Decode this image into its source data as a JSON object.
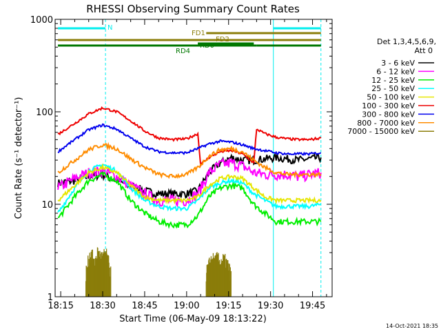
{
  "chart_data": {
    "type": "line",
    "title": "RHESSI Observing Summary Count Rates",
    "xlabel": "Start Time (06-May-09 18:13:22)",
    "ylabel": "Count Rate (s⁻¹ detector⁻¹)",
    "ylog": true,
    "ylim": [
      1,
      1000
    ],
    "xlim": [
      "18:13",
      "19:52"
    ],
    "xticks": [
      "18:15",
      "18:30",
      "18:45",
      "19:00",
      "19:15",
      "19:30",
      "19:45"
    ],
    "yticks": [
      "1",
      "10",
      "100",
      "1000"
    ],
    "footer": "14-Oct-2021 18:35",
    "legend": {
      "position": "right",
      "header_lines": [
        "Det 1,3,4,5,6,9,",
        "Att 0"
      ],
      "entries": [
        {
          "label": "3 - 6 keV",
          "color": "#000000"
        },
        {
          "label": "6 - 12 keV",
          "color": "#ff00ff"
        },
        {
          "label": "12 - 25 keV",
          "color": "#00ee00"
        },
        {
          "label": "25 - 50 keV",
          "color": "#00ffff"
        },
        {
          "label": "50 - 100 keV",
          "color": "#e6e600"
        },
        {
          "label": "100 - 300 keV",
          "color": "#ee0000"
        },
        {
          "label": "300 - 800 keV",
          "color": "#0000ee"
        },
        {
          "label": "800 - 7000 keV",
          "color": "#ff8c00"
        },
        {
          "label": "7000 - 15000 keV",
          "color": "#8b7d0a"
        }
      ]
    },
    "flag_bars": [
      {
        "label": "N",
        "color": "#00eeee",
        "segments": [
          [
            "18:14",
            "18:31"
          ],
          [
            "19:31",
            "19:48"
          ]
        ]
      },
      {
        "label": "FD1",
        "color": "#8b7d0a",
        "segments": [
          [
            "19:07",
            "19:48"
          ]
        ]
      },
      {
        "label": "FD2",
        "color": "#8b7d0a",
        "segments": [
          [
            "18:14",
            "19:48"
          ]
        ]
      },
      {
        "label": "RD0",
        "color": "#007700",
        "segments": [
          [
            "19:04",
            "19:24"
          ]
        ]
      },
      {
        "label": "RD4",
        "color": "#007700",
        "segments": [
          [
            "18:14",
            "19:25"
          ],
          [
            "19:25",
            "19:48"
          ]
        ]
      }
    ],
    "night_lines": {
      "solid": [
        "19:31"
      ],
      "dashed": [
        "18:31",
        "19:48"
      ]
    },
    "series": [
      {
        "name": "3 - 6 keV",
        "color": "#000000",
        "x": [
          "18:14",
          "18:20",
          "18:25",
          "18:30",
          "18:35",
          "18:40",
          "18:45",
          "18:50",
          "18:55",
          "19:00",
          "19:04",
          "19:08",
          "19:12",
          "19:16",
          "19:20",
          "19:24",
          "19:28",
          "19:32",
          "19:36",
          "19:40",
          "19:44",
          "19:48"
        ],
        "y": [
          17,
          18,
          20,
          21,
          18,
          16,
          14,
          13,
          13,
          13,
          14,
          22,
          28,
          32,
          30,
          30,
          31,
          32,
          31,
          30,
          31,
          32
        ]
      },
      {
        "name": "6 - 12 keV",
        "color": "#ff00ff",
        "x": [
          "18:14",
          "18:20",
          "18:25",
          "18:30",
          "18:35",
          "18:40",
          "18:45",
          "18:50",
          "18:55",
          "19:00",
          "19:04",
          "19:08",
          "19:12",
          "19:16",
          "19:20",
          "19:24",
          "19:28",
          "19:32",
          "19:36",
          "19:40",
          "19:44",
          "19:48"
        ],
        "y": [
          15,
          19,
          22,
          23,
          20,
          16,
          13,
          11,
          11,
          11,
          13,
          22,
          27,
          28,
          26,
          22,
          21,
          21,
          21,
          20,
          21,
          22
        ]
      },
      {
        "name": "12 - 25 keV",
        "color": "#00ee00",
        "x": [
          "18:14",
          "18:20",
          "18:25",
          "18:30",
          "18:35",
          "18:40",
          "18:45",
          "18:50",
          "18:55",
          "19:00",
          "19:04",
          "19:08",
          "19:12",
          "19:16",
          "19:20",
          "19:24",
          "19:28",
          "19:32",
          "19:36",
          "19:40",
          "19:44",
          "19:48"
        ],
        "y": [
          7,
          12,
          18,
          21,
          18,
          11,
          8,
          6.5,
          6,
          6,
          7.5,
          12,
          15,
          16,
          15,
          10,
          8,
          6.5,
          6.5,
          6.5,
          6.5,
          6.5
        ]
      },
      {
        "name": "25 - 50 keV",
        "color": "#00ffff",
        "x": [
          "18:14",
          "18:20",
          "18:25",
          "18:30",
          "18:35",
          "18:40",
          "18:45",
          "18:50",
          "18:55",
          "19:00",
          "19:04",
          "19:08",
          "19:12",
          "19:16",
          "19:20",
          "19:24",
          "19:28",
          "19:32",
          "19:36",
          "19:40",
          "19:44",
          "19:48"
        ],
        "y": [
          8,
          15,
          23,
          27,
          23,
          15,
          11,
          9.5,
          9,
          9,
          11,
          15,
          17,
          18,
          17,
          13,
          11,
          9.5,
          9.5,
          9.5,
          9.5,
          10
        ]
      },
      {
        "name": "50 - 100 keV",
        "color": "#e6e600",
        "x": [
          "18:14",
          "18:20",
          "18:25",
          "18:30",
          "18:35",
          "18:40",
          "18:45",
          "18:50",
          "18:55",
          "19:00",
          "19:04",
          "19:08",
          "19:12",
          "19:16",
          "19:20",
          "19:24",
          "19:28",
          "19:32",
          "19:36",
          "19:40",
          "19:44",
          "19:48"
        ],
        "y": [
          11,
          16,
          22,
          25,
          22,
          16,
          12,
          11,
          11,
          11,
          12,
          16,
          19,
          20,
          19,
          15,
          12,
          11,
          11,
          11,
          11,
          11
        ]
      },
      {
        "name": "100 - 300 keV",
        "color": "#ee0000",
        "x": [
          "18:14",
          "18:20",
          "18:25",
          "18:30",
          "18:35",
          "18:40",
          "18:45",
          "18:50",
          "18:55",
          "19:00",
          "19:04",
          "19:05",
          "19:08",
          "19:12",
          "19:16",
          "19:20",
          "19:24",
          "19:25",
          "19:28",
          "19:32",
          "19:36",
          "19:40",
          "19:44",
          "19:48"
        ],
        "y": [
          57,
          75,
          95,
          110,
          100,
          80,
          62,
          52,
          50,
          51,
          58,
          27,
          32,
          37,
          38,
          35,
          28,
          65,
          58,
          53,
          51,
          50,
          50,
          52
        ]
      },
      {
        "name": "300 - 800 keV",
        "color": "#0000ee",
        "x": [
          "18:14",
          "18:20",
          "18:25",
          "18:30",
          "18:35",
          "18:40",
          "18:45",
          "18:50",
          "18:55",
          "19:00",
          "19:04",
          "19:08",
          "19:12",
          "19:16",
          "19:20",
          "19:24",
          "19:28",
          "19:32",
          "19:36",
          "19:40",
          "19:44",
          "19:48"
        ],
        "y": [
          37,
          50,
          64,
          72,
          65,
          52,
          42,
          37,
          36,
          36,
          40,
          45,
          48,
          47,
          44,
          40,
          38,
          36,
          35,
          35,
          35,
          36
        ]
      },
      {
        "name": "800 - 7000 keV",
        "color": "#ff8c00",
        "x": [
          "18:14",
          "18:20",
          "18:25",
          "18:30",
          "18:35",
          "18:40",
          "18:45",
          "18:50",
          "18:55",
          "19:00",
          "19:04",
          "19:08",
          "19:12",
          "19:16",
          "19:20",
          "19:24",
          "19:28",
          "19:32",
          "19:36",
          "19:40",
          "19:44",
          "19:48"
        ],
        "y": [
          22,
          30,
          39,
          44,
          40,
          31,
          25,
          21,
          20,
          21,
          25,
          33,
          39,
          40,
          37,
          30,
          25,
          22,
          21,
          21,
          21,
          21
        ]
      },
      {
        "name": "7000 - 15000 keV",
        "color": "#8b7d0a",
        "x": [
          "18:24",
          "18:25",
          "18:26",
          "18:27",
          "18:28",
          "18:29",
          "18:30",
          "18:31",
          "18:32",
          "18:33",
          "19:07",
          "19:08",
          "19:09",
          "19:10",
          "19:11",
          "19:12",
          "19:13",
          "19:14",
          "19:15",
          "19:16"
        ],
        "y": [
          1.8,
          2.5,
          3,
          2.2,
          3,
          2.8,
          2.6,
          3,
          2.4,
          1.7,
          1.8,
          2.2,
          2.6,
          2.4,
          2.6,
          2.3,
          2.5,
          2.4,
          2.1,
          1.6
        ]
      }
    ]
  }
}
